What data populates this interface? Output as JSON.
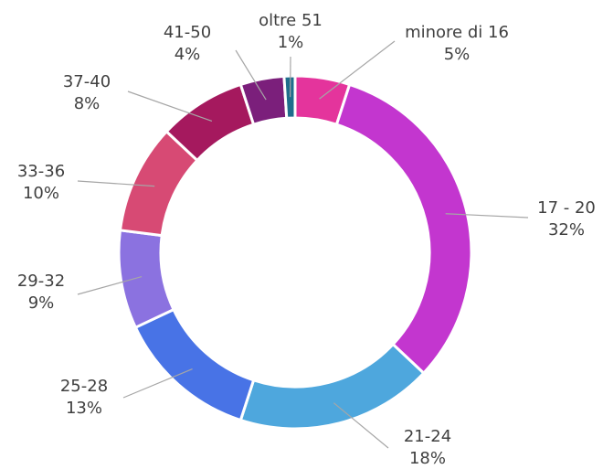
{
  "chart_data": {
    "type": "donut",
    "categories": [
      "minore di 16",
      "17 - 20",
      "21-24",
      "25-28",
      "29-32",
      "33-36",
      "37-40",
      "41-50",
      "oltre 51"
    ],
    "values": [
      5,
      32,
      18,
      13,
      9,
      10,
      8,
      4,
      1
    ],
    "value_labels": [
      "5%",
      "32%",
      "18%",
      "13%",
      "9%",
      "10%",
      "8%",
      "4%",
      "1%"
    ],
    "colors": [
      "#e4349c",
      "#c336cf",
      "#4ea7dd",
      "#4873e6",
      "#8b72e0",
      "#d74a74",
      "#a5195e",
      "#7b1f7b",
      "#1f6d8c"
    ]
  }
}
